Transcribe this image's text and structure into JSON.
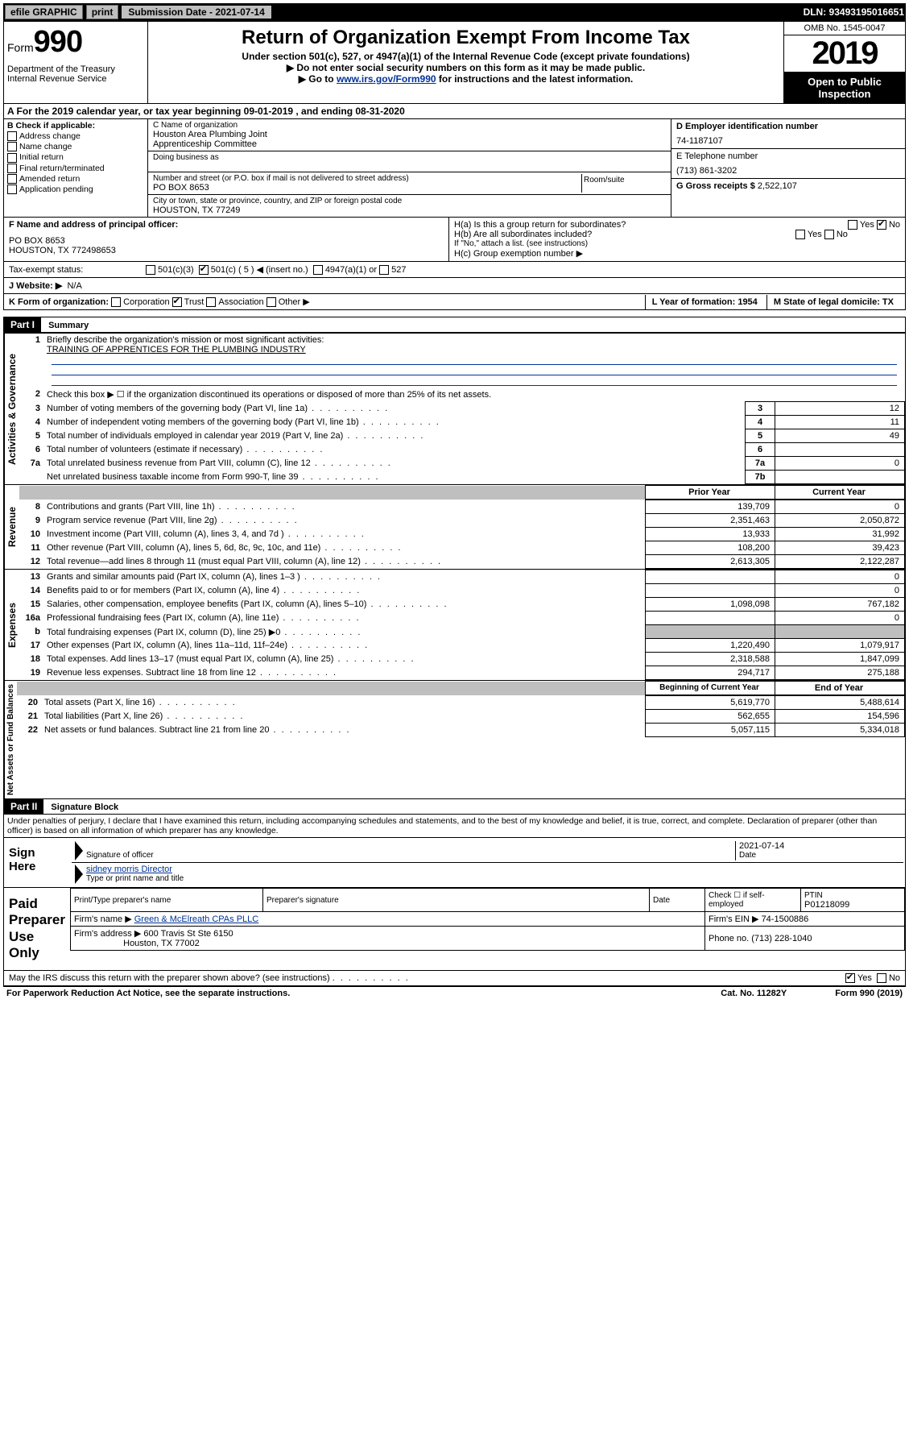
{
  "topbar": {
    "efile": "efile GRAPHIC",
    "print": "print",
    "subdate_label": "Submission Date - 2021-07-14",
    "dln": "DLN: 93493195016651"
  },
  "header": {
    "form_label": "Form",
    "form_num": "990",
    "dept1": "Department of the Treasury",
    "dept2": "Internal Revenue Service",
    "title": "Return of Organization Exempt From Income Tax",
    "sub1": "Under section 501(c), 527, or 4947(a)(1) of the Internal Revenue Code (except private foundations)",
    "sub2": "▶ Do not enter social security numbers on this form as it may be made public.",
    "sub3a": "▶ Go to ",
    "sub3_link": "www.irs.gov/Form990",
    "sub3b": " for instructions and the latest information.",
    "omb": "OMB No. 1545-0047",
    "year": "2019",
    "open": "Open to Public Inspection"
  },
  "rowA": "A For the 2019 calendar year, or tax year beginning 09-01-2019   , and ending 08-31-2020",
  "boxB": {
    "label": "B Check if applicable:",
    "items": [
      "Address change",
      "Name change",
      "Initial return",
      "Final return/terminated",
      "Amended return",
      "Application pending"
    ]
  },
  "boxC": {
    "name_label": "C Name of organization",
    "name1": "Houston Area Plumbing Joint",
    "name2": "Apprenticeship Committee",
    "dba_label": "Doing business as",
    "addr_label": "Number and street (or P.O. box if mail is not delivered to street address)",
    "room_label": "Room/suite",
    "addr": "PO BOX 8653",
    "city_label": "City or town, state or province, country, and ZIP or foreign postal code",
    "city": "HOUSTON, TX  77249"
  },
  "boxD": {
    "label": "D Employer identification number",
    "ein": "74-1187107"
  },
  "boxE": {
    "label": "E Telephone number",
    "phone": "(713) 861-3202"
  },
  "boxG": {
    "label": "G Gross receipts $",
    "val": "2,522,107"
  },
  "boxF": {
    "label": "F  Name and address of principal officer:",
    "addr1": "PO BOX 8653",
    "addr2": "HOUSTON, TX  772498653"
  },
  "boxH": {
    "ha": "H(a)  Is this a group return for subordinates?",
    "hb": "H(b)  Are all subordinates included?",
    "hb_note": "If \"No,\" attach a list. (see instructions)",
    "hc": "H(c)  Group exemption number ▶"
  },
  "taxstatus": {
    "label": "Tax-exempt status:",
    "c3": "501(c)(3)",
    "c5": "501(c) ( 5 ) ◀ (insert no.)",
    "a1": "4947(a)(1) or",
    "s527": "527"
  },
  "boxJ": {
    "label": "J  Website: ▶",
    "val": "N/A"
  },
  "boxK": {
    "label": "K Form of organization:",
    "corp": "Corporation",
    "trust": "Trust",
    "assoc": "Association",
    "other": "Other ▶",
    "L": "L Year of formation: 1954",
    "M": "M State of legal domicile: TX"
  },
  "part1": {
    "header": "Part I",
    "title": "Summary",
    "q1": "Briefly describe the organization's mission or most significant activities:",
    "q1_ans": "TRAINING OF APPRENTICES FOR THE PLUMBING INDUSTRY",
    "q2": "Check this box ▶ ☐  if the organization discontinued its operations or disposed of more than 25% of its net assets.",
    "lines_gov": [
      {
        "n": "3",
        "txt": "Number of voting members of the governing body (Part VI, line 1a)",
        "box": "3",
        "val": "12"
      },
      {
        "n": "4",
        "txt": "Number of independent voting members of the governing body (Part VI, line 1b)",
        "box": "4",
        "val": "11"
      },
      {
        "n": "5",
        "txt": "Total number of individuals employed in calendar year 2019 (Part V, line 2a)",
        "box": "5",
        "val": "49"
      },
      {
        "n": "6",
        "txt": "Total number of volunteers (estimate if necessary)",
        "box": "6",
        "val": ""
      },
      {
        "n": "7a",
        "txt": "Total unrelated business revenue from Part VIII, column (C), line 12",
        "box": "7a",
        "val": "0"
      },
      {
        "n": "",
        "txt": "Net unrelated business taxable income from Form 990-T, line 39",
        "box": "7b",
        "val": ""
      }
    ],
    "col_prior": "Prior Year",
    "col_current": "Current Year",
    "lines_rev": [
      {
        "n": "8",
        "txt": "Contributions and grants (Part VIII, line 1h)",
        "p": "139,709",
        "c": "0"
      },
      {
        "n": "9",
        "txt": "Program service revenue (Part VIII, line 2g)",
        "p": "2,351,463",
        "c": "2,050,872"
      },
      {
        "n": "10",
        "txt": "Investment income (Part VIII, column (A), lines 3, 4, and 7d )",
        "p": "13,933",
        "c": "31,992"
      },
      {
        "n": "11",
        "txt": "Other revenue (Part VIII, column (A), lines 5, 6d, 8c, 9c, 10c, and 11e)",
        "p": "108,200",
        "c": "39,423"
      },
      {
        "n": "12",
        "txt": "Total revenue—add lines 8 through 11 (must equal Part VIII, column (A), line 12)",
        "p": "2,613,305",
        "c": "2,122,287"
      }
    ],
    "lines_exp": [
      {
        "n": "13",
        "txt": "Grants and similar amounts paid (Part IX, column (A), lines 1–3 )",
        "p": "",
        "c": "0"
      },
      {
        "n": "14",
        "txt": "Benefits paid to or for members (Part IX, column (A), line 4)",
        "p": "",
        "c": "0"
      },
      {
        "n": "15",
        "txt": "Salaries, other compensation, employee benefits (Part IX, column (A), lines 5–10)",
        "p": "1,098,098",
        "c": "767,182"
      },
      {
        "n": "16a",
        "txt": "Professional fundraising fees (Part IX, column (A), line 11e)",
        "p": "",
        "c": "0"
      },
      {
        "n": "b",
        "txt": "Total fundraising expenses (Part IX, column (D), line 25) ▶0",
        "p": "GREY",
        "c": "GREY"
      },
      {
        "n": "17",
        "txt": "Other expenses (Part IX, column (A), lines 11a–11d, 11f–24e)",
        "p": "1,220,490",
        "c": "1,079,917"
      },
      {
        "n": "18",
        "txt": "Total expenses. Add lines 13–17 (must equal Part IX, column (A), line 25)",
        "p": "2,318,588",
        "c": "1,847,099"
      },
      {
        "n": "19",
        "txt": "Revenue less expenses. Subtract line 18 from line 12",
        "p": "294,717",
        "c": "275,188"
      }
    ],
    "col_begin": "Beginning of Current Year",
    "col_end": "End of Year",
    "lines_net": [
      {
        "n": "20",
        "txt": "Total assets (Part X, line 16)",
        "p": "5,619,770",
        "c": "5,488,614"
      },
      {
        "n": "21",
        "txt": "Total liabilities (Part X, line 26)",
        "p": "562,655",
        "c": "154,596"
      },
      {
        "n": "22",
        "txt": "Net assets or fund balances. Subtract line 21 from line 20",
        "p": "5,057,115",
        "c": "5,334,018"
      }
    ],
    "side_gov": "Activities & Governance",
    "side_rev": "Revenue",
    "side_exp": "Expenses",
    "side_net": "Net Assets or Fund Balances"
  },
  "part2": {
    "header": "Part II",
    "title": "Signature Block",
    "perjury": "Under penalties of perjury, I declare that I have examined this return, including accompanying schedules and statements, and to the best of my knowledge and belief, it is true, correct, and complete. Declaration of preparer (other than officer) is based on all information of which preparer has any knowledge.",
    "sign_here": "Sign Here",
    "sig_label": "Signature of officer",
    "date": "2021-07-14",
    "date_label": "Date",
    "name": "sidney morris  Director",
    "name_label": "Type or print name and title",
    "paid": "Paid Preparer Use Only",
    "prep_name_label": "Print/Type preparer's name",
    "prep_sig_label": "Preparer's signature",
    "check_self": "Check ☐ if self-employed",
    "ptin_label": "PTIN",
    "ptin": "P01218099",
    "firm_name_label": "Firm's name    ▶",
    "firm_name": "Green & McElreath CPAs PLLC",
    "firm_ein_label": "Firm's EIN ▶",
    "firm_ein": "74-1500886",
    "firm_addr_label": "Firm's address ▶",
    "firm_addr1": "600 Travis St Ste 6150",
    "firm_addr2": "Houston, TX  77002",
    "phone_label": "Phone no.",
    "phone": "(713) 228-1040",
    "discuss": "May the IRS discuss this return with the preparer shown above? (see instructions)"
  },
  "footer": {
    "pra": "For Paperwork Reduction Act Notice, see the separate instructions.",
    "cat": "Cat. No. 11282Y",
    "form": "Form 990 (2019)"
  }
}
